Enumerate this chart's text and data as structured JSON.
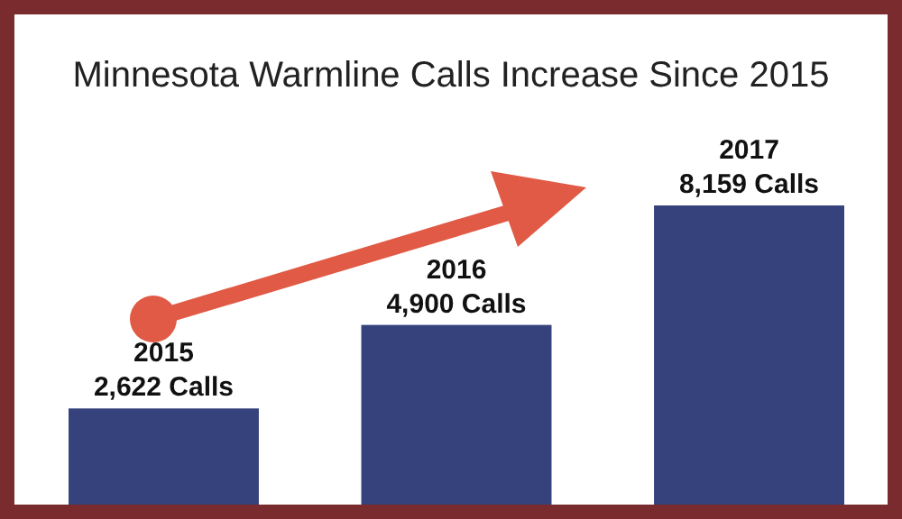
{
  "chart_data": {
    "type": "bar",
    "title": "Minnesota Warmline Calls Increase Since 2015",
    "categories": [
      "2015",
      "2016",
      "2017"
    ],
    "values": [
      2622,
      4900,
      8159
    ],
    "value_labels": [
      "2,622 Calls",
      "4,900 Calls",
      "8,159 Calls"
    ],
    "color": "#35427c"
  }
}
